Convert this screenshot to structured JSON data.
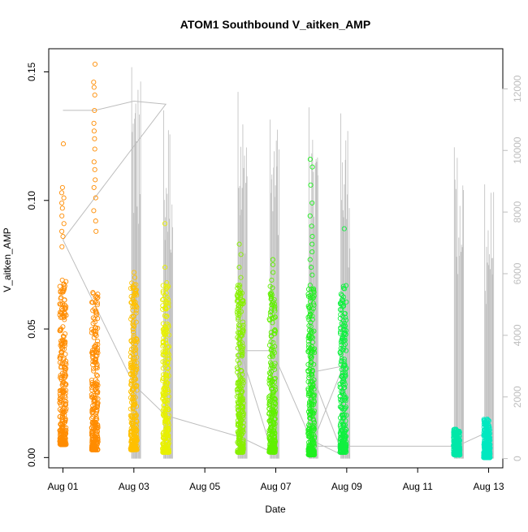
{
  "chart_data": {
    "type": "scatter",
    "title": "ATOM1 Southbound V_aitken_AMP",
    "xlabel": "Date",
    "ylabel": "V_aitken_AMP",
    "x_ticks": [
      "Aug 01",
      "Aug 03",
      "Aug 05",
      "Aug 07",
      "Aug 09",
      "Aug 11",
      "Aug 13"
    ],
    "x_tick_days": [
      1,
      3,
      5,
      7,
      9,
      11,
      13
    ],
    "xlim_days": [
      0.6,
      13.4
    ],
    "y_ticks": [
      0.0,
      0.05,
      0.1,
      0.15
    ],
    "y_tick_labels": [
      "0.00",
      "0.05",
      "0.10",
      "0.15"
    ],
    "ylim": [
      -0.004,
      0.159
    ],
    "y2_ticks": [
      0,
      2000,
      4000,
      6000,
      8000,
      10000,
      12000
    ],
    "y2lim": [
      -300,
      13300
    ],
    "grid": false,
    "colors": {
      "secondary_line": "#bdbdbd",
      "axis": "#000000"
    },
    "series": [
      {
        "day": 1.0,
        "color": "#ff8c00",
        "ymin": 0.005,
        "ymax": 0.122,
        "outliers": [
          0.005,
          0.006,
          0.082,
          0.086,
          0.088,
          0.091,
          0.094,
          0.097,
          0.099,
          0.101,
          0.103,
          0.105,
          0.122
        ]
      },
      {
        "day": 1.9,
        "color": "#ff8c00",
        "ymin": 0.003,
        "ymax": 0.153,
        "outliers": [
          0.153,
          0.146,
          0.144,
          0.141,
          0.135,
          0.13,
          0.127,
          0.124,
          0.12,
          0.115,
          0.112,
          0.108,
          0.105,
          0.101,
          0.096,
          0.092,
          0.088
        ]
      },
      {
        "day": 3.0,
        "color": "#ffc000",
        "ymin": 0.003,
        "ymax": 0.072,
        "outliers": [
          0.072,
          0.07,
          0.066,
          0.063,
          0.059,
          0.055,
          0.051
        ]
      },
      {
        "day": 3.9,
        "color": "#e8f000",
        "ymin": 0.002,
        "ymax": 0.091,
        "outliers": [
          0.091,
          0.074,
          0.068,
          0.063,
          0.058,
          0.055,
          0.052
        ]
      },
      {
        "day": 6.0,
        "color": "#88f000",
        "ymin": 0.002,
        "ymax": 0.083,
        "outliers": [
          0.083,
          0.079,
          0.074,
          0.07,
          0.067,
          0.064,
          0.06,
          0.057
        ]
      },
      {
        "day": 6.9,
        "color": "#60f000",
        "ymin": 0.002,
        "ymax": 0.077,
        "outliers": [
          0.077,
          0.075,
          0.072,
          0.069,
          0.066,
          0.062,
          0.058
        ]
      },
      {
        "day": 8.0,
        "color": "#20f020",
        "ymin": 0.001,
        "ymax": 0.116,
        "outliers": [
          0.116,
          0.113,
          0.106,
          0.099,
          0.094,
          0.09,
          0.086,
          0.083,
          0.08,
          0.077,
          0.074,
          0.071,
          0.067,
          0.063,
          0.059,
          0.055,
          0.051,
          0.047,
          0.043,
          0.039,
          0.036
        ]
      },
      {
        "day": 8.9,
        "color": "#10f040",
        "ymin": 0.002,
        "ymax": 0.089,
        "outliers": [
          0.089,
          0.059,
          0.055,
          0.051,
          0.048,
          0.045,
          0.042
        ]
      },
      {
        "day": 12.1,
        "color": "#00e8a8",
        "ymin": 0.001,
        "ymax": 0.011,
        "outliers": [
          0.011,
          0.01,
          0.009
        ]
      },
      {
        "day": 12.95,
        "color": "#00e8c0",
        "ymin": 0.0,
        "ymax": 0.015,
        "outliers": [
          0.015,
          0.013,
          0.012
        ]
      }
    ],
    "secondary_series": {
      "axis": "right",
      "spikes": [
        {
          "day": 3.0,
          "max": 12700
        },
        {
          "day": 3.9,
          "max": 11300
        },
        {
          "day": 6.0,
          "max": 11900
        },
        {
          "day": 6.9,
          "max": 11000
        },
        {
          "day": 8.0,
          "max": 11400
        },
        {
          "day": 8.9,
          "max": 11200
        },
        {
          "day": 12.1,
          "max": 10100
        },
        {
          "day": 12.95,
          "max": 8900
        }
      ],
      "connector": [
        {
          "day": 1.0,
          "value": 11300
        },
        {
          "day": 1.9,
          "value": 11300
        },
        {
          "day": 3.0,
          "value": 11600
        },
        {
          "day": 3.9,
          "value": 11500
        },
        {
          "day": 1.0,
          "value": 7100
        },
        {
          "day": 3.0,
          "value": 2400
        },
        {
          "day": 3.9,
          "value": 1400
        },
        {
          "day": 6.0,
          "value": 700
        },
        {
          "day": 6.9,
          "value": 200
        },
        {
          "day": 6.0,
          "value": 3500
        },
        {
          "day": 6.9,
          "value": 3500
        },
        {
          "day": 8.0,
          "value": 600
        },
        {
          "day": 8.9,
          "value": 100
        },
        {
          "day": 8.0,
          "value": 2800
        },
        {
          "day": 8.9,
          "value": 3000
        },
        {
          "day": 8.0,
          "value": 400
        },
        {
          "day": 12.1,
          "value": 400
        },
        {
          "day": 12.95,
          "value": 850
        },
        {
          "day": 12.95,
          "value": 400
        }
      ]
    }
  }
}
